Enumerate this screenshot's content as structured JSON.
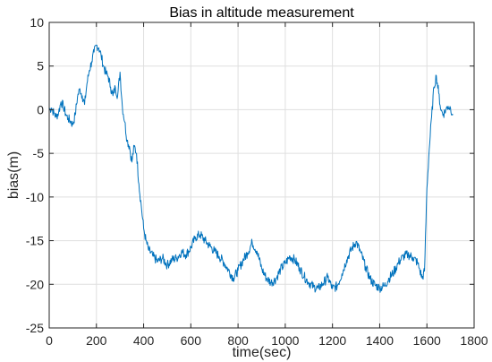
{
  "chart_data": {
    "type": "line",
    "title": "Bias in altitude measurement",
    "xlabel": "time(sec)",
    "ylabel": "bias(m)",
    "xlim": [
      0,
      1800
    ],
    "ylim": [
      -25,
      10
    ],
    "xticks": [
      0,
      200,
      400,
      600,
      800,
      1000,
      1200,
      1400,
      1600,
      1800
    ],
    "yticks": [
      -25,
      -20,
      -15,
      -10,
      -5,
      0,
      5,
      10
    ],
    "xtick_labels": [
      "0",
      "200",
      "400",
      "600",
      "800",
      "1000",
      "1200",
      "1400",
      "1600",
      "1800"
    ],
    "ytick_labels": [
      "-25",
      "-20",
      "-15",
      "-10",
      "-5",
      "0",
      "5",
      "10"
    ],
    "grid": true,
    "series": [
      {
        "color": "#0072bd",
        "x": [
          0,
          10,
          20,
          30,
          40,
          50,
          60,
          70,
          80,
          90,
          100,
          110,
          120,
          130,
          140,
          150,
          160,
          170,
          180,
          190,
          200,
          210,
          220,
          230,
          240,
          250,
          260,
          270,
          280,
          290,
          300,
          310,
          320,
          330,
          340,
          350,
          360,
          370,
          380,
          390,
          400,
          410,
          420,
          440,
          460,
          480,
          500,
          520,
          540,
          560,
          580,
          600,
          620,
          640,
          660,
          680,
          700,
          720,
          740,
          760,
          780,
          800,
          820,
          840,
          860,
          880,
          900,
          920,
          940,
          960,
          980,
          1000,
          1020,
          1040,
          1060,
          1080,
          1100,
          1120,
          1140,
          1160,
          1180,
          1200,
          1220,
          1240,
          1260,
          1280,
          1300,
          1320,
          1340,
          1360,
          1380,
          1400,
          1420,
          1440,
          1460,
          1480,
          1500,
          1520,
          1540,
          1560,
          1570,
          1580,
          1590,
          1600,
          1610,
          1620,
          1630,
          1640,
          1650,
          1660,
          1670,
          1680,
          1690,
          1700,
          1710
        ],
        "y": [
          0,
          0.2,
          -0.4,
          -0.8,
          -0.3,
          0.9,
          0.4,
          -0.5,
          -1.0,
          -1.3,
          -1.7,
          -0.6,
          1.5,
          2.4,
          1.6,
          0.6,
          3.0,
          4.5,
          5.5,
          6.6,
          7.4,
          7.1,
          6.2,
          5.0,
          4.2,
          3.8,
          2.6,
          1.6,
          2.6,
          1.6,
          4.3,
          0.3,
          -1.4,
          -3.5,
          -4.2,
          -6.0,
          -4.2,
          -5.0,
          -8.5,
          -11.0,
          -13.6,
          -15.0,
          -16.0,
          -16.8,
          -17.4,
          -17.0,
          -17.8,
          -17.2,
          -17.0,
          -16.3,
          -16.6,
          -15.8,
          -14.6,
          -14.3,
          -15.0,
          -15.6,
          -16.2,
          -16.8,
          -17.5,
          -18.4,
          -19.3,
          -18.4,
          -17.3,
          -16.4,
          -15.2,
          -16.2,
          -18.2,
          -19.3,
          -19.8,
          -19.4,
          -18.3,
          -17.6,
          -16.8,
          -17.2,
          -18.1,
          -19.1,
          -19.8,
          -20.3,
          -20.5,
          -19.9,
          -19.2,
          -20.5,
          -20.2,
          -18.8,
          -17.2,
          -16.0,
          -15.1,
          -16.4,
          -18.0,
          -19.4,
          -20.1,
          -20.4,
          -20.2,
          -19.3,
          -18.6,
          -17.5,
          -16.8,
          -16.6,
          -16.9,
          -17.5,
          -18.4,
          -19.3,
          -18.5,
          -9.0,
          -4.5,
          -0.8,
          2.6,
          3.9,
          1.9,
          -0.1,
          -0.5,
          0.0,
          0.4,
          0.2,
          -0.5
        ]
      }
    ]
  }
}
